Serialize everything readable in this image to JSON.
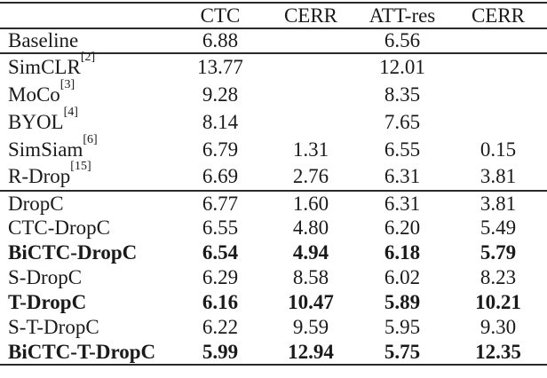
{
  "table": {
    "columns": [
      "",
      "CTC",
      "CERR",
      "ATT-res",
      "CERR"
    ],
    "sections": [
      {
        "rows": [
          {
            "label": "Baseline",
            "sup": "",
            "bold": false,
            "values": [
              "6.88",
              "",
              "6.56",
              ""
            ]
          }
        ]
      },
      {
        "rows": [
          {
            "label": "SimCLR",
            "sup": "[2]",
            "bold": false,
            "values": [
              "13.77",
              "",
              "12.01",
              ""
            ]
          },
          {
            "label": "MoCo",
            "sup": "[3]",
            "bold": false,
            "values": [
              "9.28",
              "",
              "8.35",
              ""
            ]
          },
          {
            "label": "BYOL",
            "sup": "[4]",
            "bold": false,
            "values": [
              "8.14",
              "",
              "7.65",
              ""
            ]
          },
          {
            "label": "SimSiam",
            "sup": "[6]",
            "bold": false,
            "values": [
              "6.79",
              "1.31",
              "6.55",
              "0.15"
            ]
          },
          {
            "label": "R-Drop",
            "sup": "[15]",
            "bold": false,
            "values": [
              "6.69",
              "2.76",
              "6.31",
              "3.81"
            ]
          }
        ]
      },
      {
        "rows": [
          {
            "label": "DropC",
            "sup": "",
            "bold": false,
            "values": [
              "6.77",
              "1.60",
              "6.31",
              "3.81"
            ]
          },
          {
            "label": "CTC-DropC",
            "sup": "",
            "bold": false,
            "values": [
              "6.55",
              "4.80",
              "6.20",
              "5.49"
            ]
          },
          {
            "label": "BiCTC-DropC",
            "sup": "",
            "bold": true,
            "values": [
              "6.54",
              "4.94",
              "6.18",
              "5.79"
            ]
          },
          {
            "label": "S-DropC",
            "sup": "",
            "bold": false,
            "values": [
              "6.29",
              "8.58",
              "6.02",
              "8.23"
            ]
          },
          {
            "label": "T-DropC",
            "sup": "",
            "bold": true,
            "values": [
              "6.16",
              "10.47",
              "5.89",
              "10.21"
            ]
          },
          {
            "label": "S-T-DropC",
            "sup": "",
            "bold": false,
            "values": [
              "6.22",
              "9.59",
              "5.95",
              "9.30"
            ]
          },
          {
            "label": "BiCTC-T-DropC",
            "sup": "",
            "bold": true,
            "values": [
              "5.99",
              "12.94",
              "5.75",
              "12.35"
            ]
          }
        ]
      }
    ]
  },
  "colors": {
    "text": "#1a1a1a",
    "rule": "#2a2a2a",
    "background": "#ffffff"
  }
}
